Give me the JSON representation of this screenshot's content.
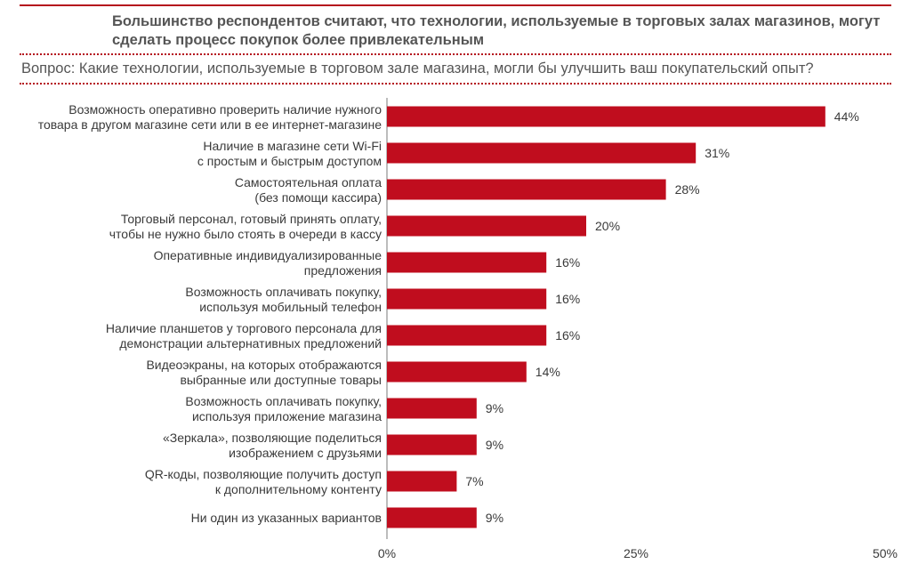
{
  "title": "Большинство респондентов считают, что технологии, используемые в торговых залах магазинов, могут сделать процесс покупок более привлекательным",
  "question": "Вопрос: Какие технологии, используемые в торговом зале магазина, могли бы улучшить ваш покупательский опыт?",
  "colors": {
    "accent": "#b5101c",
    "bar": "#c00d1e",
    "text": "#3a3a3a"
  },
  "chart_data": {
    "type": "bar",
    "orientation": "horizontal",
    "categories": [
      [
        "Возможность оперативно проверить наличие нужного",
        "товара в другом магазине сети или в ее интернет-магазине"
      ],
      [
        "Наличие в магазине сети Wi-Fi",
        "с простым и быстрым доступом"
      ],
      [
        "Самостоятельная оплата",
        "(без помощи кассира)"
      ],
      [
        "Торговый персонал, готовый принять оплату,",
        "чтобы не нужно было  стоять в очереди в кассу"
      ],
      [
        "Оперативные индивидуализированные",
        "предложения"
      ],
      [
        "Возможность оплачивать покупку,",
        "используя мобильный телефон"
      ],
      [
        "Наличие планшетов у торгового персонала для",
        "демонстрации  альтернативных предложений"
      ],
      [
        "Видеоэкраны, на которых отображаются",
        "выбранные или  доступные товары"
      ],
      [
        "Возможность оплачивать покупку,",
        "используя приложение магазина"
      ],
      [
        "«Зеркала», позволяющие поделиться",
        "изображением с друзьями"
      ],
      [
        "QR-коды, позволяющие получить доступ",
        "к дополнительному контенту"
      ],
      [
        "Ни один из указанных вариантов"
      ]
    ],
    "values": [
      44,
      31,
      28,
      20,
      16,
      16,
      16,
      14,
      9,
      9,
      7,
      9
    ],
    "value_labels": [
      "44%",
      "31%",
      "28%",
      "20%",
      "16%",
      "16%",
      "16%",
      "14%",
      "9%",
      "9%",
      "7%",
      "9%"
    ],
    "xlim": [
      0,
      50
    ],
    "xticks": [
      0,
      25,
      50
    ],
    "xtick_labels": [
      "0%",
      "25%",
      "50%"
    ],
    "grid": false,
    "legend": "none"
  }
}
